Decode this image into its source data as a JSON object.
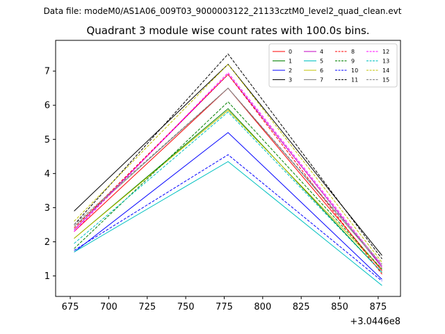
{
  "chart_data": {
    "type": "line",
    "suptitle": "Data file: modeM0/AS1A06_009T03_9000003122_21133cztM0_level2_quad_clean.evt",
    "title": "Quadrant 3 module wise count rates with 100.0s bins.",
    "xlabel": "",
    "ylabel": "",
    "x_offset_label": "+3.0446e8",
    "x": [
      677.5,
      777.5,
      877.5
    ],
    "xlim": [
      665.5,
      889.5
    ],
    "ylim": [
      0.4,
      7.9
    ],
    "x_ticks": [
      675,
      700,
      725,
      750,
      775,
      800,
      825,
      850,
      875
    ],
    "y_ticks": [
      1,
      2,
      3,
      4,
      5,
      6,
      7
    ],
    "legend_position": "top-right",
    "legend_columns": 4,
    "series": [
      {
        "name": "0",
        "color": "#ff0000",
        "dash": "solid",
        "values": [
          2.3,
          6.5,
          1.15
        ]
      },
      {
        "name": "1",
        "color": "#008000",
        "dash": "solid",
        "values": [
          2.1,
          5.9,
          1.1
        ]
      },
      {
        "name": "2",
        "color": "#0000ff",
        "dash": "solid",
        "values": [
          1.7,
          5.2,
          0.9
        ]
      },
      {
        "name": "3",
        "color": "#000000",
        "dash": "solid",
        "values": [
          2.9,
          7.2,
          1.6
        ]
      },
      {
        "name": "4",
        "color": "#c000c0",
        "dash": "solid",
        "values": [
          2.35,
          6.9,
          1.25
        ]
      },
      {
        "name": "5",
        "color": "#00c0c0",
        "dash": "solid",
        "values": [
          1.7,
          4.35,
          0.72
        ]
      },
      {
        "name": "6",
        "color": "#c0c000",
        "dash": "solid",
        "values": [
          2.1,
          5.85,
          1.2
        ]
      },
      {
        "name": "7",
        "color": "#808080",
        "dash": "solid",
        "values": [
          2.45,
          6.5,
          1.3
        ]
      },
      {
        "name": "8",
        "color": "#ff0000",
        "dash": "dashed",
        "values": [
          2.4,
          6.9,
          1.05
        ]
      },
      {
        "name": "9",
        "color": "#008000",
        "dash": "dashed",
        "values": [
          1.8,
          6.1,
          1.2
        ]
      },
      {
        "name": "10",
        "color": "#0000ff",
        "dash": "dashed",
        "values": [
          1.75,
          4.55,
          0.85
        ]
      },
      {
        "name": "11",
        "color": "#000000",
        "dash": "dashed",
        "values": [
          2.5,
          7.5,
          1.5
        ]
      },
      {
        "name": "12",
        "color": "#ff00ff",
        "dash": "dashed",
        "values": [
          2.3,
          6.95,
          1.3
        ]
      },
      {
        "name": "13",
        "color": "#00c0c0",
        "dash": "dashed",
        "values": [
          1.95,
          5.8,
          1.1
        ]
      },
      {
        "name": "14",
        "color": "#c0c000",
        "dash": "dashed",
        "values": [
          2.6,
          7.2,
          1.4
        ]
      },
      {
        "name": "15",
        "color": "#808080",
        "dash": "dashed",
        "values": [
          2.5,
          6.5,
          1.35
        ]
      }
    ]
  }
}
